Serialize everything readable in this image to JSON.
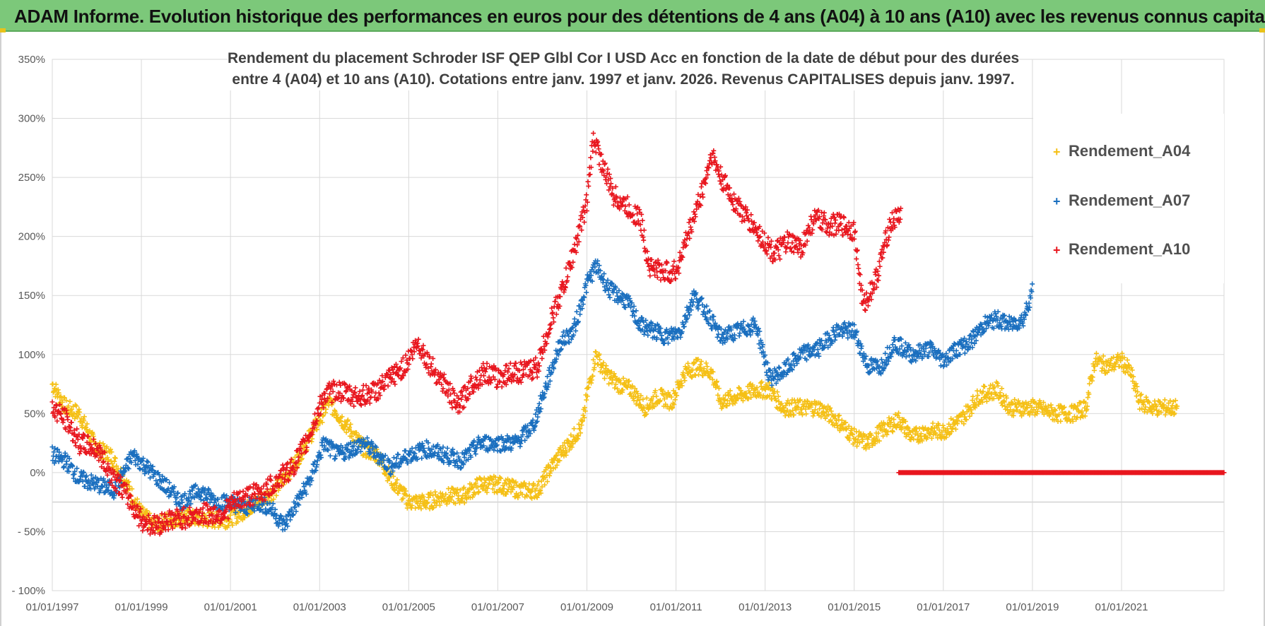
{
  "header": {
    "title": "ADAM Informe. Evolution historique des performances en euros pour des détentions de 4 ans (A04) à 10 ans (A10) avec les revenus connus capitalisés"
  },
  "chart_data": {
    "type": "scatter",
    "title_line1": "Rendement du placement Schroder ISF QEP Glbl Cor I USD Acc  en fonction de la date de début pour des durées",
    "title_line2": "entre 4 (A04) et 10 ans (A10).  Cotations entre janv. 1997 et janv. 2026.  Revenus CAPITALISES  depuis janv. 1997.",
    "xlabel": "",
    "ylabel": "",
    "xlim": [
      1997.0,
      2023.3
    ],
    "ylim": [
      -100,
      350
    ],
    "y_ticks": [
      "350%",
      "300%",
      "250%",
      "200%",
      "150%",
      "100%",
      "50%",
      "0%",
      "- 50%",
      "- 100%"
    ],
    "y_tick_values": [
      350,
      300,
      250,
      200,
      150,
      100,
      50,
      0,
      -50,
      -100
    ],
    "x_ticks": [
      "01/01/1997",
      "01/01/1999",
      "01/01/2001",
      "01/01/2003",
      "01/01/2005",
      "01/01/2007",
      "01/01/2009",
      "01/01/2011",
      "01/01/2013",
      "01/01/2015",
      "01/01/2017",
      "01/01/2019",
      "01/01/2021"
    ],
    "x_tick_values": [
      1997,
      1999,
      2001,
      2003,
      2005,
      2007,
      2009,
      2011,
      2013,
      2015,
      2017,
      2019,
      2021
    ],
    "legend_position": "right",
    "marker": "+",
    "series": [
      {
        "name": "Rendement_A04",
        "color": "#f5c016",
        "x_start": 1997.0,
        "x_end": 2022.25,
        "points": [
          [
            1997.0,
            75
          ],
          [
            1997.3,
            55
          ],
          [
            1997.6,
            50
          ],
          [
            1998.0,
            20
          ],
          [
            1998.3,
            15
          ],
          [
            1998.6,
            -5
          ],
          [
            1999.0,
            -35
          ],
          [
            1999.3,
            -45
          ],
          [
            1999.6,
            -40
          ],
          [
            2000.0,
            -38
          ],
          [
            2000.5,
            -40
          ],
          [
            2000.9,
            -40
          ],
          [
            2001.2,
            -35
          ],
          [
            2001.6,
            -25
          ],
          [
            2002.0,
            -15
          ],
          [
            2002.4,
            5
          ],
          [
            2002.7,
            25
          ],
          [
            2003.0,
            45
          ],
          [
            2003.2,
            60
          ],
          [
            2003.5,
            45
          ],
          [
            2003.8,
            30
          ],
          [
            2004.0,
            20
          ],
          [
            2004.3,
            15
          ],
          [
            2004.6,
            -5
          ],
          [
            2005.0,
            -25
          ],
          [
            2005.4,
            -25
          ],
          [
            2005.8,
            -20
          ],
          [
            2006.2,
            -20
          ],
          [
            2006.6,
            -10
          ],
          [
            2007.0,
            -10
          ],
          [
            2007.5,
            -15
          ],
          [
            2007.9,
            -15
          ],
          [
            2008.2,
            5
          ],
          [
            2008.6,
            25
          ],
          [
            2008.9,
            40
          ],
          [
            2009.0,
            65
          ],
          [
            2009.2,
            100
          ],
          [
            2009.4,
            85
          ],
          [
            2009.7,
            75
          ],
          [
            2010.0,
            70
          ],
          [
            2010.3,
            55
          ],
          [
            2010.6,
            65
          ],
          [
            2010.9,
            60
          ],
          [
            2011.2,
            85
          ],
          [
            2011.5,
            90
          ],
          [
            2011.8,
            85
          ],
          [
            2012.0,
            60
          ],
          [
            2012.4,
            65
          ],
          [
            2012.8,
            70
          ],
          [
            2013.1,
            70
          ],
          [
            2013.4,
            55
          ],
          [
            2013.8,
            55
          ],
          [
            2014.2,
            55
          ],
          [
            2014.6,
            45
          ],
          [
            2015.0,
            30
          ],
          [
            2015.3,
            25
          ],
          [
            2015.6,
            35
          ],
          [
            2016.0,
            45
          ],
          [
            2016.3,
            30
          ],
          [
            2016.6,
            35
          ],
          [
            2017.0,
            35
          ],
          [
            2017.4,
            45
          ],
          [
            2017.8,
            65
          ],
          [
            2018.2,
            70
          ],
          [
            2018.5,
            55
          ],
          [
            2018.8,
            55
          ],
          [
            2019.1,
            55
          ],
          [
            2019.5,
            50
          ],
          [
            2019.9,
            50
          ],
          [
            2020.2,
            55
          ],
          [
            2020.4,
            95
          ],
          [
            2020.7,
            90
          ],
          [
            2021.0,
            95
          ],
          [
            2021.2,
            85
          ],
          [
            2021.4,
            60
          ],
          [
            2021.7,
            55
          ],
          [
            2022.0,
            55
          ],
          [
            2022.25,
            55
          ]
        ]
      },
      {
        "name": "Rendement_A07",
        "color": "#1a6fbf",
        "x_start": 1997.0,
        "x_end": 2019.0,
        "points": [
          [
            1997.0,
            15
          ],
          [
            1997.3,
            10
          ],
          [
            1997.6,
            -5
          ],
          [
            1998.0,
            -10
          ],
          [
            1998.4,
            -15
          ],
          [
            1998.8,
            15
          ],
          [
            1999.1,
            5
          ],
          [
            1999.5,
            -10
          ],
          [
            1999.9,
            -25
          ],
          [
            2000.3,
            -15
          ],
          [
            2000.7,
            -25
          ],
          [
            2001.0,
            -25
          ],
          [
            2001.3,
            -30
          ],
          [
            2001.6,
            -25
          ],
          [
            2001.9,
            -30
          ],
          [
            2002.2,
            -45
          ],
          [
            2002.5,
            -25
          ],
          [
            2002.8,
            -5
          ],
          [
            2003.1,
            25
          ],
          [
            2003.4,
            15
          ],
          [
            2003.7,
            20
          ],
          [
            2004.0,
            25
          ],
          [
            2004.3,
            15
          ],
          [
            2004.6,
            5
          ],
          [
            2005.0,
            15
          ],
          [
            2005.4,
            20
          ],
          [
            2005.8,
            15
          ],
          [
            2006.2,
            10
          ],
          [
            2006.6,
            25
          ],
          [
            2007.0,
            25
          ],
          [
            2007.4,
            25
          ],
          [
            2007.8,
            40
          ],
          [
            2008.1,
            75
          ],
          [
            2008.4,
            110
          ],
          [
            2008.7,
            120
          ],
          [
            2009.0,
            160
          ],
          [
            2009.2,
            175
          ],
          [
            2009.5,
            155
          ],
          [
            2009.9,
            145
          ],
          [
            2010.2,
            125
          ],
          [
            2010.5,
            120
          ],
          [
            2010.8,
            115
          ],
          [
            2011.1,
            120
          ],
          [
            2011.4,
            150
          ],
          [
            2011.7,
            135
          ],
          [
            2012.0,
            115
          ],
          [
            2012.4,
            120
          ],
          [
            2012.8,
            125
          ],
          [
            2013.1,
            80
          ],
          [
            2013.4,
            85
          ],
          [
            2013.8,
            100
          ],
          [
            2014.2,
            105
          ],
          [
            2014.6,
            120
          ],
          [
            2015.0,
            120
          ],
          [
            2015.3,
            90
          ],
          [
            2015.6,
            90
          ],
          [
            2015.9,
            110
          ],
          [
            2016.3,
            100
          ],
          [
            2016.7,
            105
          ],
          [
            2017.0,
            95
          ],
          [
            2017.3,
            105
          ],
          [
            2017.6,
            110
          ],
          [
            2017.9,
            125
          ],
          [
            2018.2,
            130
          ],
          [
            2018.5,
            125
          ],
          [
            2018.8,
            130
          ],
          [
            2019.0,
            155
          ]
        ]
      },
      {
        "name": "Rendement_A10",
        "color": "#e8161e",
        "x_start": 1997.0,
        "x_end": 2016.05,
        "points": [
          [
            1997.0,
            55
          ],
          [
            1997.3,
            45
          ],
          [
            1997.6,
            25
          ],
          [
            1998.0,
            20
          ],
          [
            1998.3,
            0
          ],
          [
            1998.6,
            -15
          ],
          [
            1999.0,
            -40
          ],
          [
            1999.3,
            -45
          ],
          [
            1999.6,
            -40
          ],
          [
            2000.0,
            -38
          ],
          [
            2000.4,
            -35
          ],
          [
            2000.8,
            -35
          ],
          [
            2001.1,
            -25
          ],
          [
            2001.4,
            -20
          ],
          [
            2001.8,
            -15
          ],
          [
            2002.1,
            -5
          ],
          [
            2002.4,
            5
          ],
          [
            2002.7,
            25
          ],
          [
            2002.9,
            45
          ],
          [
            2003.1,
            65
          ],
          [
            2003.4,
            70
          ],
          [
            2003.7,
            65
          ],
          [
            2004.0,
            65
          ],
          [
            2004.3,
            70
          ],
          [
            2004.6,
            80
          ],
          [
            2004.9,
            90
          ],
          [
            2005.2,
            110
          ],
          [
            2005.5,
            90
          ],
          [
            2005.8,
            75
          ],
          [
            2006.1,
            55
          ],
          [
            2006.4,
            75
          ],
          [
            2006.7,
            85
          ],
          [
            2007.0,
            80
          ],
          [
            2007.3,
            85
          ],
          [
            2007.6,
            85
          ],
          [
            2007.9,
            90
          ],
          [
            2008.2,
            130
          ],
          [
            2008.5,
            160
          ],
          [
            2008.8,
            200
          ],
          [
            2009.0,
            230
          ],
          [
            2009.15,
            285
          ],
          [
            2009.35,
            260
          ],
          [
            2009.6,
            235
          ],
          [
            2009.9,
            225
          ],
          [
            2010.2,
            215
          ],
          [
            2010.4,
            175
          ],
          [
            2010.7,
            170
          ],
          [
            2011.0,
            170
          ],
          [
            2011.3,
            205
          ],
          [
            2011.6,
            240
          ],
          [
            2011.8,
            270
          ],
          [
            2012.0,
            250
          ],
          [
            2012.3,
            230
          ],
          [
            2012.6,
            215
          ],
          [
            2012.9,
            200
          ],
          [
            2013.2,
            185
          ],
          [
            2013.5,
            195
          ],
          [
            2013.8,
            190
          ],
          [
            2014.1,
            215
          ],
          [
            2014.4,
            210
          ],
          [
            2014.7,
            210
          ],
          [
            2015.0,
            205
          ],
          [
            2015.2,
            140
          ],
          [
            2015.5,
            165
          ],
          [
            2015.8,
            210
          ],
          [
            2016.05,
            220
          ]
        ],
        "tail": {
          "x_start": 2016.0,
          "x_end": 2023.3,
          "value": 0
        }
      }
    ]
  }
}
